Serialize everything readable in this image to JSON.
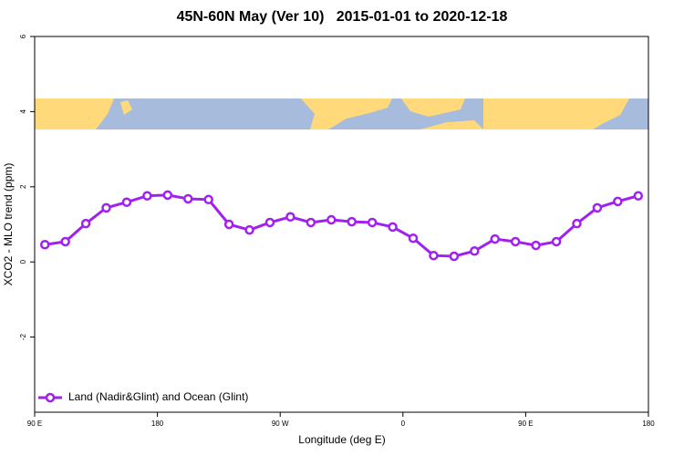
{
  "chart_data": {
    "type": "line",
    "title": "45N-60N May (Ver 10)   2015-01-01 to 2020-12-18",
    "x_label": "Longitude (deg E)",
    "y_label": "XCO2 - MLO trend (ppm)",
    "xlim": [
      90,
      540
    ],
    "xticks": [
      {
        "value": 90,
        "label": "90 E"
      },
      180,
      {
        "value": 270,
        "label": "90 W"
      },
      {
        "value": 360,
        "label": "0"
      },
      {
        "value": 450,
        "label": "90 E"
      },
      {
        "value": 540,
        "label": "180"
      }
    ],
    "ylim": [
      -4,
      6
    ],
    "yticks": [
      -2,
      0,
      2,
      4,
      6
    ],
    "legend_position": "bottom-left",
    "series": [
      {
        "name": "Land (Nadir&Glint) and Ocean (Glint)",
        "color": "#a020f0",
        "x": [
          97.5,
          112.5,
          127.5,
          142.5,
          157.5,
          172.5,
          187.5,
          202.5,
          217.5,
          232.5,
          247.5,
          262.5,
          277.5,
          292.5,
          307.5,
          322.5,
          337.5,
          352.5,
          367.5,
          382.5,
          397.5,
          412.5,
          427.5,
          442.5,
          457.5,
          472.5,
          487.5,
          502.5,
          517.5,
          532.5
        ],
        "values": [
          0.46,
          0.54,
          1.02,
          1.44,
          1.59,
          1.76,
          1.78,
          1.68,
          1.66,
          1.0,
          0.85,
          1.05,
          1.2,
          1.05,
          1.12,
          1.07,
          1.05,
          0.93,
          0.63,
          0.17,
          0.15,
          0.29,
          0.61,
          0.54,
          0.44,
          0.54,
          1.02,
          1.44,
          1.61,
          1.76
        ]
      }
    ]
  }
}
